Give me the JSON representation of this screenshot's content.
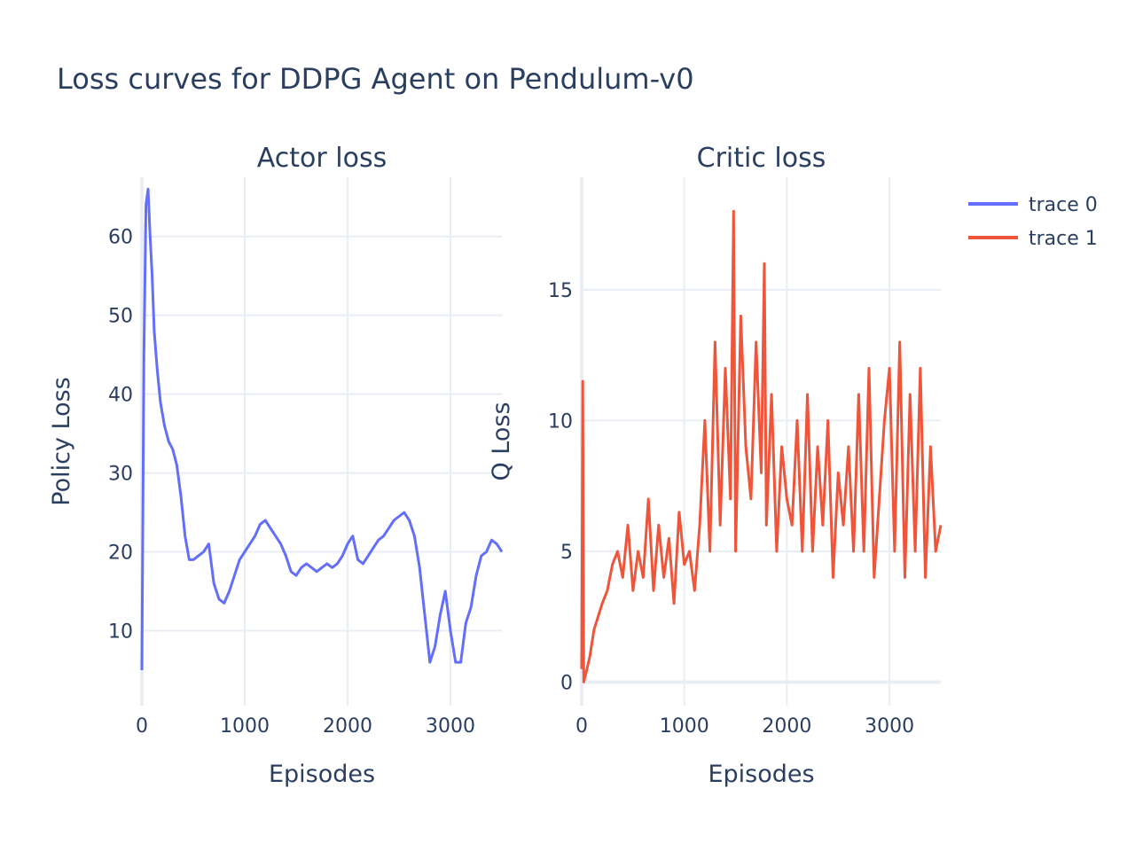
{
  "title": "Loss curves for DDPG Agent on Pendulum-v0",
  "chart_data": [
    {
      "type": "line",
      "title": "Actor loss",
      "xlabel": "Episodes",
      "ylabel": "Policy Loss",
      "xlim": [
        0,
        3500
      ],
      "ylim": [
        0.5,
        67.5
      ],
      "xticks": [
        0,
        1000,
        2000,
        3000
      ],
      "yticks": [
        10,
        20,
        30,
        40,
        50,
        60
      ],
      "series": [
        {
          "name": "trace 0",
          "color": "#636efa",
          "x": [
            0,
            20,
            40,
            60,
            80,
            100,
            120,
            150,
            180,
            220,
            260,
            300,
            340,
            380,
            420,
            460,
            500,
            550,
            600,
            650,
            700,
            750,
            800,
            850,
            900,
            950,
            1000,
            1050,
            1100,
            1150,
            1200,
            1250,
            1300,
            1350,
            1400,
            1450,
            1500,
            1550,
            1600,
            1650,
            1700,
            1750,
            1800,
            1850,
            1900,
            1950,
            2000,
            2050,
            2100,
            2150,
            2200,
            2250,
            2300,
            2350,
            2400,
            2450,
            2500,
            2550,
            2600,
            2650,
            2700,
            2750,
            2800,
            2850,
            2900,
            2950,
            3000,
            3050,
            3100,
            3150,
            3200,
            3250,
            3300,
            3350,
            3400,
            3450,
            3500
          ],
          "y": [
            5,
            45,
            64,
            66,
            60,
            55,
            48,
            43,
            39,
            36,
            34,
            33,
            31,
            27,
            22,
            19,
            19,
            19.5,
            20,
            21,
            16,
            14,
            13.5,
            15,
            17,
            19,
            20,
            21,
            22,
            23.5,
            24,
            23,
            22,
            21,
            19.5,
            17.5,
            17,
            18,
            18.5,
            18,
            17.5,
            18,
            18.5,
            18,
            18.5,
            19.5,
            21,
            22,
            19,
            18.5,
            19.5,
            20.5,
            21.5,
            22,
            23,
            24,
            24.5,
            25,
            24,
            22,
            18,
            12,
            6,
            8,
            12,
            15,
            10,
            6,
            6,
            11,
            13,
            17,
            19.5,
            20,
            21.5,
            21,
            20
          ]
        }
      ]
    },
    {
      "type": "line",
      "title": "Critic loss",
      "xlabel": "Episodes",
      "ylabel": "Q Loss",
      "xlim": [
        0,
        3500
      ],
      "ylim": [
        -0.9,
        19.3
      ],
      "xticks": [
        0,
        1000,
        2000,
        3000
      ],
      "yticks": [
        0,
        5,
        10,
        15
      ],
      "series": [
        {
          "name": "trace 1",
          "color": "#ef553b",
          "x": [
            0,
            10,
            20,
            40,
            80,
            120,
            160,
            200,
            250,
            300,
            350,
            400,
            450,
            500,
            550,
            600,
            650,
            700,
            750,
            800,
            850,
            900,
            950,
            1000,
            1050,
            1100,
            1150,
            1200,
            1250,
            1300,
            1350,
            1400,
            1450,
            1480,
            1500,
            1550,
            1600,
            1650,
            1700,
            1750,
            1780,
            1800,
            1850,
            1900,
            1950,
            2000,
            2050,
            2100,
            2150,
            2200,
            2250,
            2300,
            2350,
            2400,
            2450,
            2500,
            2550,
            2600,
            2650,
            2700,
            2750,
            2800,
            2850,
            2900,
            2950,
            3000,
            3050,
            3100,
            3150,
            3200,
            3250,
            3300,
            3350,
            3400,
            3450,
            3500
          ],
          "y": [
            0.5,
            11.5,
            0,
            0.3,
            1,
            2,
            2.5,
            3,
            3.5,
            4.5,
            5,
            4,
            6,
            3.5,
            5,
            4,
            7,
            3.5,
            6,
            4,
            5.5,
            3,
            6.5,
            4.5,
            5,
            3.5,
            6,
            10,
            5,
            13,
            6,
            12,
            7,
            18,
            5,
            14,
            9,
            7,
            13,
            8,
            16,
            6,
            11,
            5,
            9,
            7,
            6,
            10,
            5,
            11,
            5,
            9,
            6,
            10,
            4,
            8,
            6,
            9,
            5,
            11,
            5,
            12,
            4,
            7,
            10,
            12,
            5,
            13,
            4,
            11,
            5,
            12,
            4,
            9,
            5,
            6
          ]
        }
      ]
    }
  ],
  "legend": {
    "placement": "top-right",
    "items": [
      {
        "name": "trace 0",
        "color": "#636efa"
      },
      {
        "name": "trace 1",
        "color": "#ef553b"
      }
    ]
  }
}
